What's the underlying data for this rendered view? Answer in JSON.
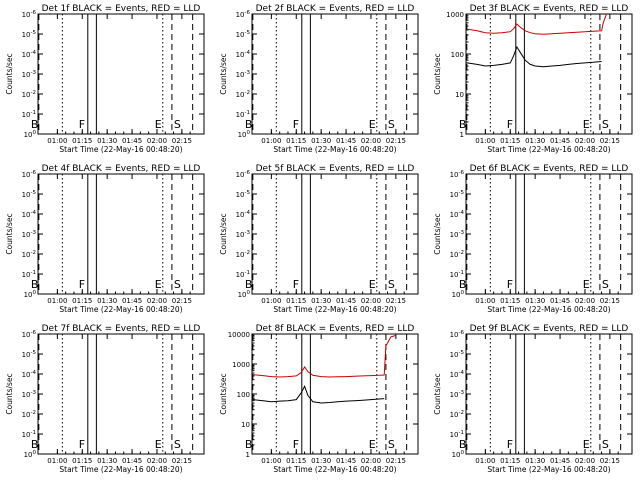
{
  "chart_data": {
    "type": "line",
    "start_time_label": "Start Time (22-May-16 00:48:20)",
    "ylabel": "Counts/sec",
    "x_ticks": [
      "01:00",
      "01:15",
      "01:30",
      "01:45",
      "02:00",
      "02:15"
    ],
    "y_ticks_empty": [
      "10^0",
      "10^-1",
      "10^-2",
      "10^-3",
      "10^-4",
      "10^-5",
      "10^-6"
    ],
    "y_ticks_data": [
      "1",
      "10",
      "100",
      "1000"
    ],
    "y_ticks_data_det8": [
      "1",
      "10",
      "100",
      "1000",
      "10000"
    ],
    "markers": [
      {
        "label": "B",
        "time": "00:48:50",
        "style": "dashed"
      },
      {
        "label": "",
        "time": "01:03:00",
        "style": "dotted"
      },
      {
        "label": "F",
        "time": "01:18:20",
        "style": "solid"
      },
      {
        "label": "",
        "time": "01:23:30",
        "style": "solid"
      },
      {
        "label": "E",
        "time": "02:03:30",
        "style": "dotted"
      },
      {
        "label": "S",
        "time": "02:09:00",
        "style": "dashed"
      },
      {
        "label": "",
        "time": "02:21:30",
        "style": "dashed"
      }
    ],
    "panels": [
      {
        "title": "Det 1f BLACK = Events, RED = LLD",
        "has_data": false
      },
      {
        "title": "Det 2f BLACK = Events, RED = LLD",
        "has_data": false
      },
      {
        "title": "Det 3f BLACK = Events, RED = LLD",
        "has_data": true,
        "ylim": [
          1,
          1000
        ],
        "series": [
          {
            "name": "Events",
            "color": "#000000",
            "x": [
              "00:49",
              "00:55",
              "01:00",
              "01:05",
              "01:10",
              "01:15",
              "01:17",
              "01:19",
              "01:21",
              "01:24",
              "01:27",
              "01:30",
              "01:35",
              "01:40",
              "01:45",
              "01:50",
              "01:55",
              "02:00",
              "02:05",
              "02:10"
            ],
            "y": [
              60,
              55,
              50,
              52,
              55,
              60,
              90,
              150,
              110,
              70,
              55,
              50,
              48,
              50,
              52,
              55,
              58,
              60,
              62,
              65
            ]
          },
          {
            "name": "LLD",
            "color": "#cc0000",
            "x": [
              "00:49",
              "00:55",
              "01:00",
              "01:05",
              "01:10",
              "01:15",
              "01:17",
              "01:19",
              "01:21",
              "01:24",
              "01:27",
              "01:30",
              "01:35",
              "01:40",
              "01:45",
              "01:50",
              "01:55",
              "02:00",
              "02:05",
              "02:10",
              "02:11",
              "02:13"
            ],
            "y": [
              420,
              380,
              340,
              330,
              340,
              360,
              430,
              560,
              470,
              380,
              340,
              320,
              310,
              320,
              330,
              340,
              350,
              360,
              370,
              380,
              600,
              1000
            ]
          }
        ]
      },
      {
        "title": "Det 4f BLACK = Events, RED = LLD",
        "has_data": false
      },
      {
        "title": "Det 5f BLACK = Events, RED = LLD",
        "has_data": false
      },
      {
        "title": "Det 6f BLACK = Events, RED = LLD",
        "has_data": false
      },
      {
        "title": "Det 7f BLACK = Events, RED = LLD",
        "has_data": false
      },
      {
        "title": "Det 8f BLACK = Events, RED = LLD",
        "has_data": true,
        "ylim": [
          1,
          10000
        ],
        "series": [
          {
            "name": "Events",
            "color": "#000000",
            "x": [
              "00:49",
              "00:55",
              "01:00",
              "01:05",
              "01:10",
              "01:15",
              "01:18",
              "01:20",
              "01:22",
              "01:25",
              "01:30",
              "01:35",
              "01:40",
              "01:45",
              "01:50",
              "01:55",
              "02:00",
              "02:05",
              "02:08"
            ],
            "y": [
              65,
              60,
              55,
              58,
              60,
              65,
              110,
              180,
              90,
              55,
              50,
              52,
              55,
              58,
              60,
              62,
              65,
              68,
              70
            ]
          },
          {
            "name": "LLD",
            "color": "#cc0000",
            "x": [
              "00:49",
              "00:55",
              "01:00",
              "01:05",
              "01:10",
              "01:15",
              "01:18",
              "01:20",
              "01:22",
              "01:25",
              "01:30",
              "01:35",
              "01:40",
              "01:45",
              "01:50",
              "01:55",
              "02:00",
              "02:05",
              "02:08",
              "02:09",
              "02:12",
              "02:15"
            ],
            "y": [
              440,
              410,
              380,
              370,
              380,
              400,
              520,
              800,
              560,
              420,
              380,
              370,
              375,
              380,
              390,
              400,
              410,
              420,
              430,
              4000,
              8000,
              9000
            ]
          }
        ]
      },
      {
        "title": "Det 9f BLACK = Events, RED = LLD",
        "has_data": false
      }
    ]
  }
}
